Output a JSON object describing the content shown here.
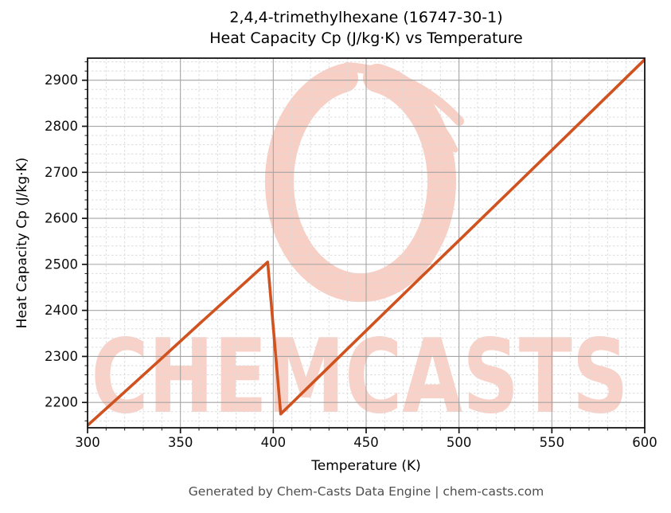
{
  "title": {
    "line1": "2,4,4-trimethylhexane (16747-30-1)",
    "line2": "Heat Capacity Cp (J/kg·K) vs Temperature"
  },
  "footer": {
    "text": "Generated by Chem-Casts Data Engine | chem-casts.com"
  },
  "watermark": {
    "text": "CHEMCASTS",
    "logo": "chemcasts-swirl-logo",
    "text_color": "#f8d2c8",
    "logo_color": "#f7cfc4"
  },
  "chart_data": {
    "type": "line",
    "title": "2,4,4-trimethylhexane (16747-30-1)\nHeat Capacity Cp (J/kg·K) vs Temperature",
    "xlabel": "Temperature (K)",
    "ylabel": "Heat Capacity Cp (J/kg·K)",
    "xlim": [
      300,
      600
    ],
    "ylim": [
      2145,
      2948
    ],
    "x_ticks": [
      300,
      350,
      400,
      450,
      500,
      550,
      600
    ],
    "y_ticks": [
      2200,
      2300,
      2400,
      2500,
      2600,
      2700,
      2800,
      2900
    ],
    "x_minor_step": 10,
    "y_minor_step": 20,
    "grid": true,
    "legend": false,
    "series": [
      {
        "name": "Heat Capacity Cp",
        "color": "#cf521f",
        "x": [
          300,
          320,
          340,
          360,
          380,
          397,
          404,
          420,
          450,
          480,
          500,
          550,
          600
        ],
        "y": [
          2150,
          2223,
          2296,
          2370,
          2443,
          2505,
          2175,
          2238,
          2356,
          2474,
          2552,
          2748,
          2945
        ]
      }
    ],
    "features": {
      "peak": {
        "x": 397,
        "y": 2505
      },
      "drop_bottom": {
        "x": 404,
        "y": 2175
      },
      "start": {
        "x": 300,
        "y": 2150
      },
      "end": {
        "x": 600,
        "y": 2945
      }
    },
    "colors": {
      "major_grid": "#a5a5a5",
      "minor_grid": "#dcdcdc",
      "spine": "#141414",
      "tick_label": "#0d0d0d"
    }
  }
}
